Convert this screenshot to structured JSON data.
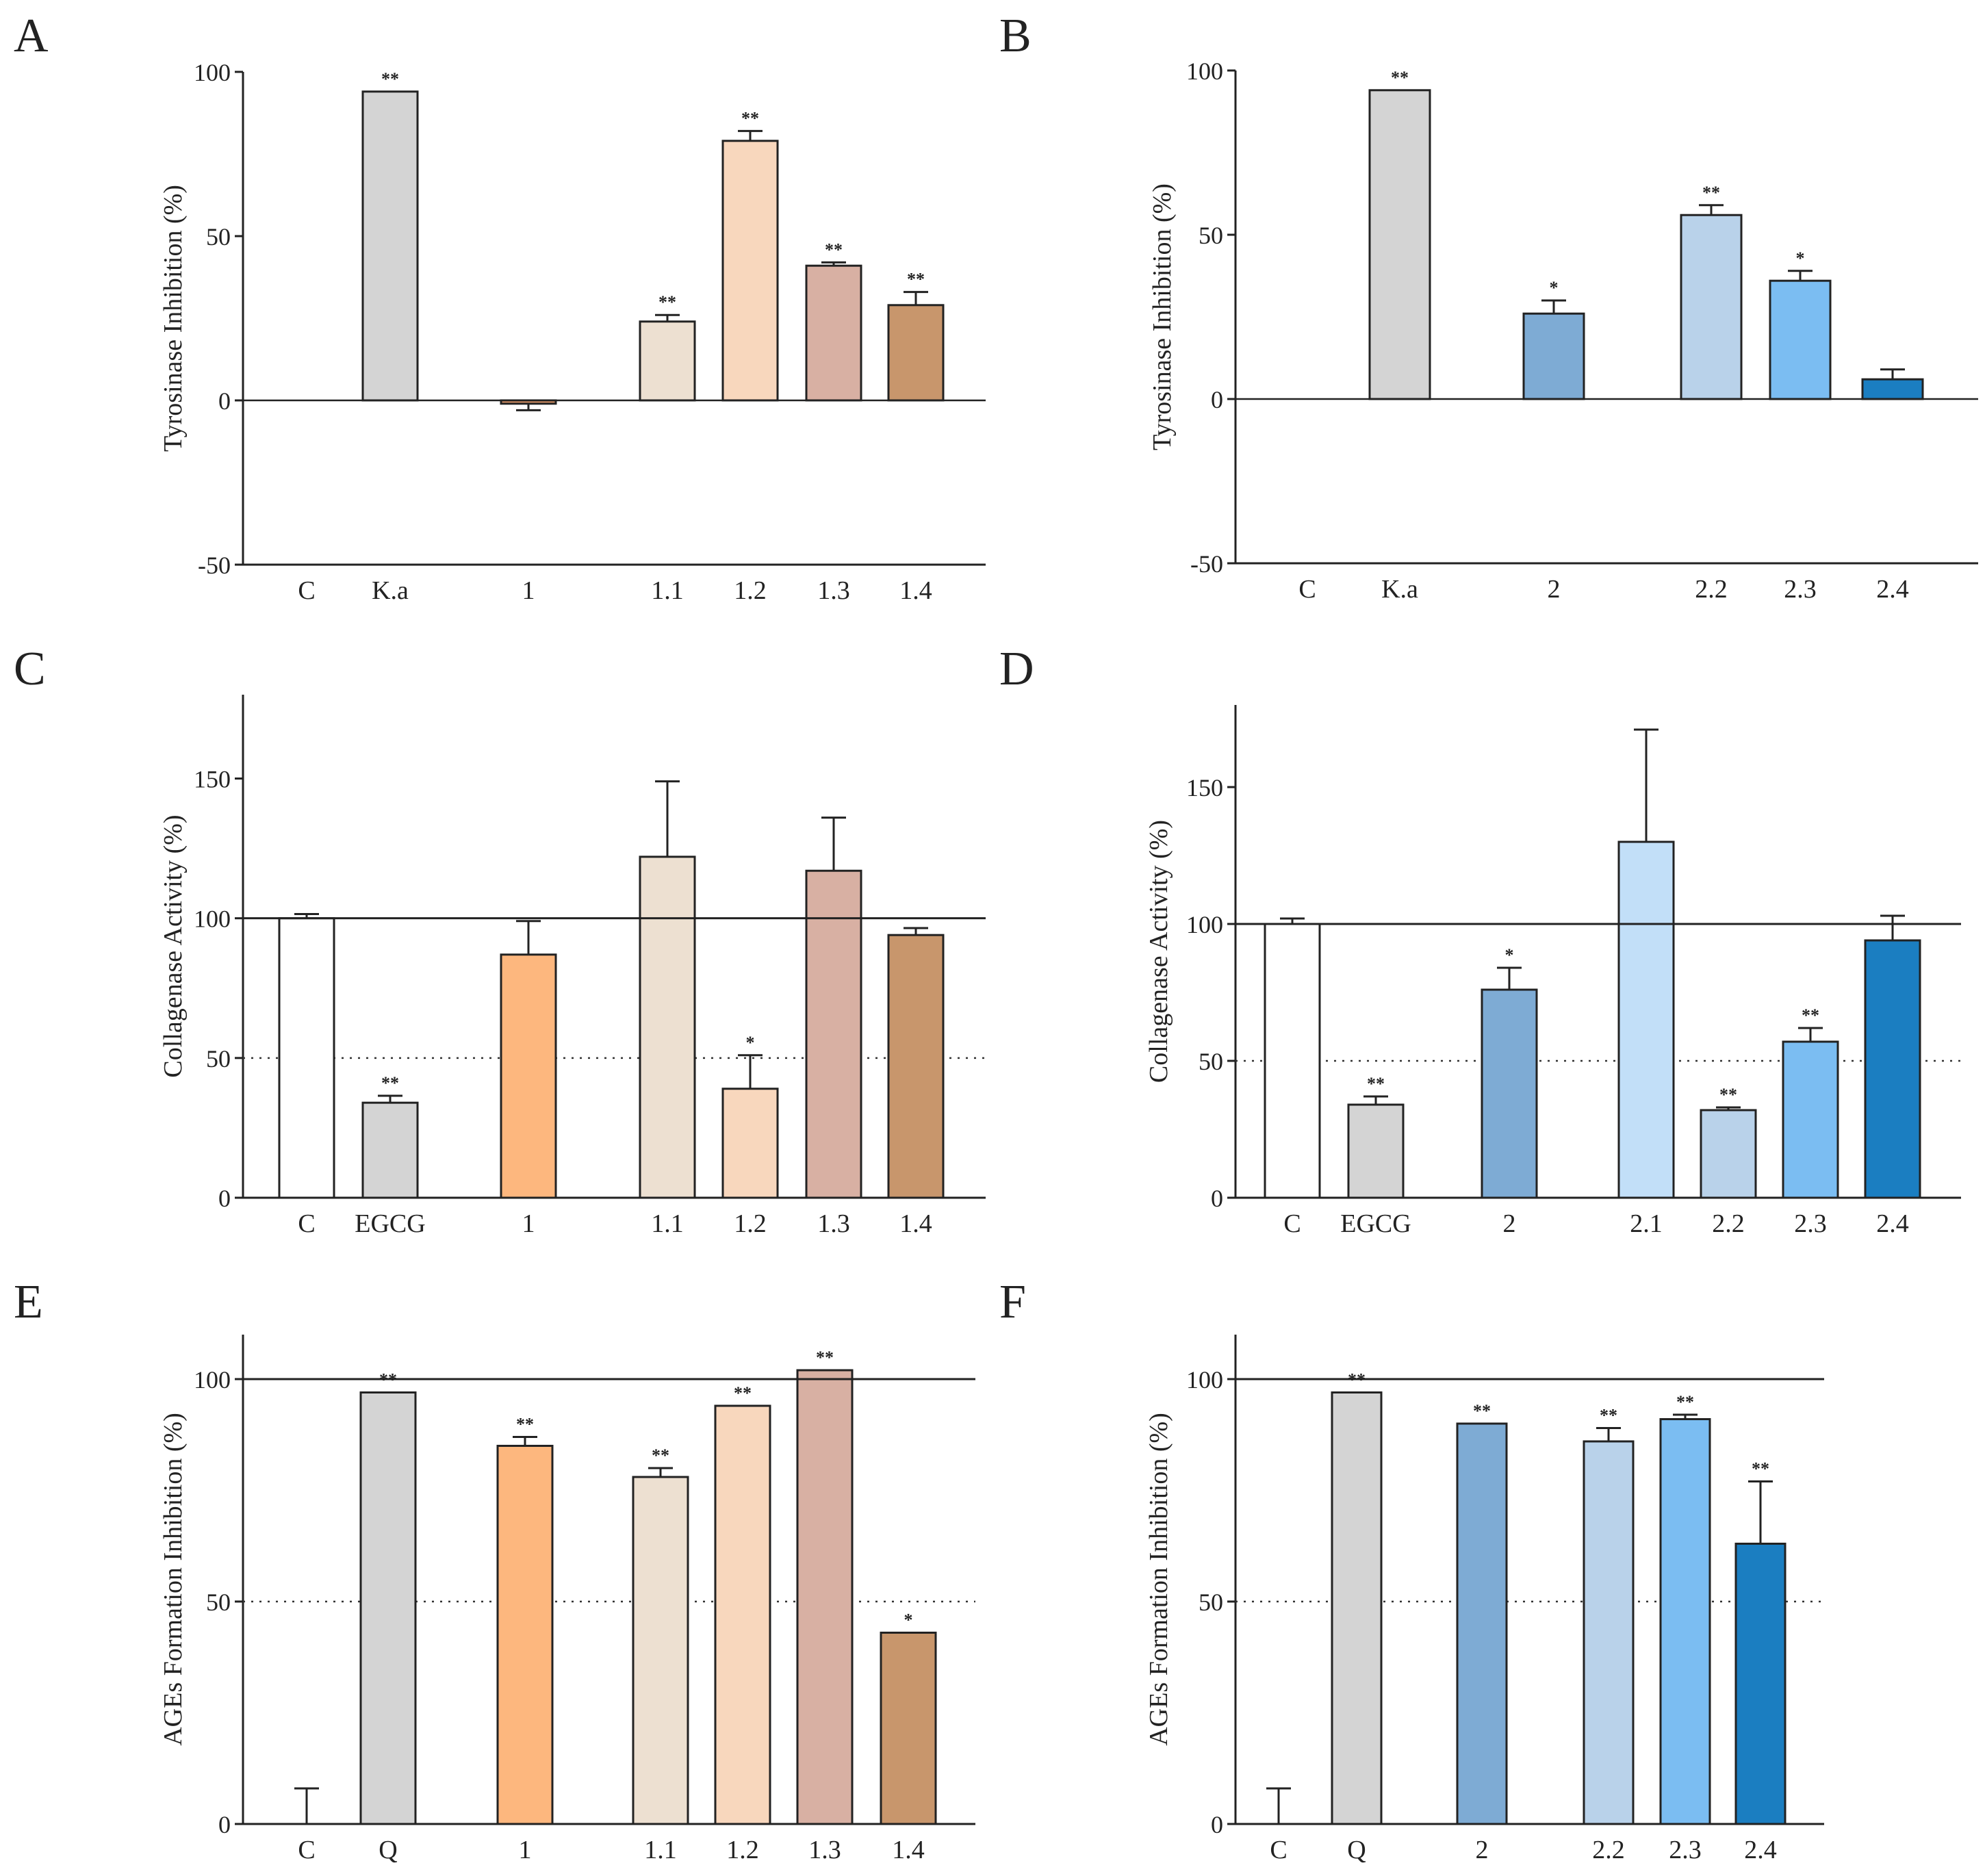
{
  "chart_data": [
    {
      "panel": "A",
      "type": "bar",
      "ylabel": "Tyrosinase Inhibition (%)",
      "ylim": [
        -50,
        100
      ],
      "yticks": [
        -50,
        0,
        50,
        100
      ],
      "yticklabels": [
        "-50",
        "0",
        "50",
        "100"
      ],
      "categories": [
        "C",
        "K.a",
        "1",
        "1.1",
        "1.2",
        "1.3",
        "1.4"
      ],
      "values": [
        0,
        94,
        -1,
        24,
        79,
        41,
        29
      ],
      "errors": [
        0,
        0,
        2,
        2,
        3,
        1,
        4
      ],
      "significance": [
        "",
        "**",
        "",
        "**",
        "**",
        "**",
        "**"
      ],
      "colors": [
        "#ffffff",
        "#d4d4d4",
        "#e69a6a",
        "#ede0d1",
        "#f8d7bd",
        "#d8b0a3",
        "#c8966c"
      ],
      "refline": null,
      "dotted50": false
    },
    {
      "panel": "B",
      "type": "bar",
      "ylabel": "Tyrosinase Inhibition (%)",
      "ylim": [
        -50,
        100
      ],
      "yticks": [
        -50,
        0,
        50,
        100
      ],
      "yticklabels": [
        "-50",
        "0",
        "50",
        "100"
      ],
      "categories": [
        "C",
        "K.a",
        "2",
        "2.2",
        "2.3",
        "2.4"
      ],
      "values": [
        0,
        94,
        26,
        56,
        36,
        6
      ],
      "errors": [
        0,
        0,
        4,
        3,
        3,
        3
      ],
      "significance": [
        "",
        "**",
        "*",
        "**",
        "*",
        ""
      ],
      "colors": [
        "#ffffff",
        "#d4d4d4",
        "#7eabd4",
        "#b9d2ea",
        "#7bbdf2",
        "#1b7ec1"
      ],
      "refline": null,
      "dotted50": false
    },
    {
      "panel": "C",
      "type": "bar",
      "ylabel": "Collagenase Activity (%)",
      "ylim": [
        0,
        180
      ],
      "yticks": [
        0,
        50,
        100,
        150
      ],
      "yticklabels": [
        "0",
        "50",
        "100",
        "150"
      ],
      "categories": [
        "C",
        "EGCG",
        "1",
        "1.1",
        "1.2",
        "1.3",
        "1.4"
      ],
      "values": [
        100,
        34,
        87,
        122,
        39,
        117,
        94
      ],
      "errors": [
        1.5,
        2.5,
        12,
        27,
        12,
        19,
        2.5
      ],
      "significance": [
        "",
        "**",
        "",
        "",
        "*",
        "",
        ""
      ],
      "colors": [
        "#ffffff",
        "#d4d4d4",
        "#fdb77e",
        "#ede0d1",
        "#f8d7bd",
        "#d8b0a3",
        "#c8966c"
      ],
      "refline": 100,
      "dotted50": true
    },
    {
      "panel": "D",
      "type": "bar",
      "ylabel": "Collagenase Activity (%)",
      "ylim": [
        0,
        180
      ],
      "yticks": [
        0,
        50,
        100,
        150
      ],
      "yticklabels": [
        "0",
        "50",
        "100",
        "150"
      ],
      "categories": [
        "C",
        "EGCG",
        "2",
        "2.1",
        "2.2",
        "2.3",
        "2.4"
      ],
      "values": [
        100,
        34,
        76,
        130,
        32,
        57,
        94
      ],
      "errors": [
        2,
        3,
        8,
        41,
        1,
        5,
        9
      ],
      "significance": [
        "",
        "**",
        "*",
        "",
        "**",
        "**",
        ""
      ],
      "colors": [
        "#ffffff",
        "#d4d4d4",
        "#7eabd4",
        "#c2dff8",
        "#b9d2ea",
        "#7bbdf2",
        "#1b7ec1"
      ],
      "refline": 100,
      "dotted50": true
    },
    {
      "panel": "E",
      "type": "bar",
      "ylabel": "AGEs Formation Inhibition (%)",
      "ylim": [
        0,
        110
      ],
      "yticks": [
        0,
        50,
        100
      ],
      "yticklabels": [
        "0",
        "50",
        "100"
      ],
      "categories": [
        "C",
        "Q",
        "1",
        "1.1",
        "1.2",
        "1.3",
        "1.4"
      ],
      "values": [
        0,
        97,
        85,
        78,
        94,
        102,
        43
      ],
      "errors": [
        8,
        0,
        2,
        2,
        0,
        0,
        0
      ],
      "significance": [
        "",
        "**",
        "**",
        "**",
        "**",
        "**",
        "*"
      ],
      "colors": [
        "#ffffff",
        "#d4d4d4",
        "#fdb77e",
        "#ede0d1",
        "#f8d7bd",
        "#d8b0a3",
        "#c8966c"
      ],
      "refline": 100,
      "dotted50": true
    },
    {
      "panel": "F",
      "type": "bar",
      "ylabel": "AGEs Formation Inhibition (%)",
      "ylim": [
        0,
        110
      ],
      "yticks": [
        0,
        50,
        100
      ],
      "yticklabels": [
        "0",
        "50",
        "100"
      ],
      "categories": [
        "C",
        "Q",
        "2",
        "2.2",
        "2.3",
        "2.4"
      ],
      "values": [
        0,
        97,
        90,
        86,
        91,
        63
      ],
      "errors": [
        8,
        0,
        0,
        3,
        1,
        14
      ],
      "significance": [
        "",
        "**",
        "**",
        "**",
        "**",
        "**"
      ],
      "colors": [
        "#ffffff",
        "#d4d4d4",
        "#7eabd4",
        "#b9d2ea",
        "#7bbdf2",
        "#1b7ec1"
      ],
      "refline": 100,
      "dotted50": true
    }
  ]
}
